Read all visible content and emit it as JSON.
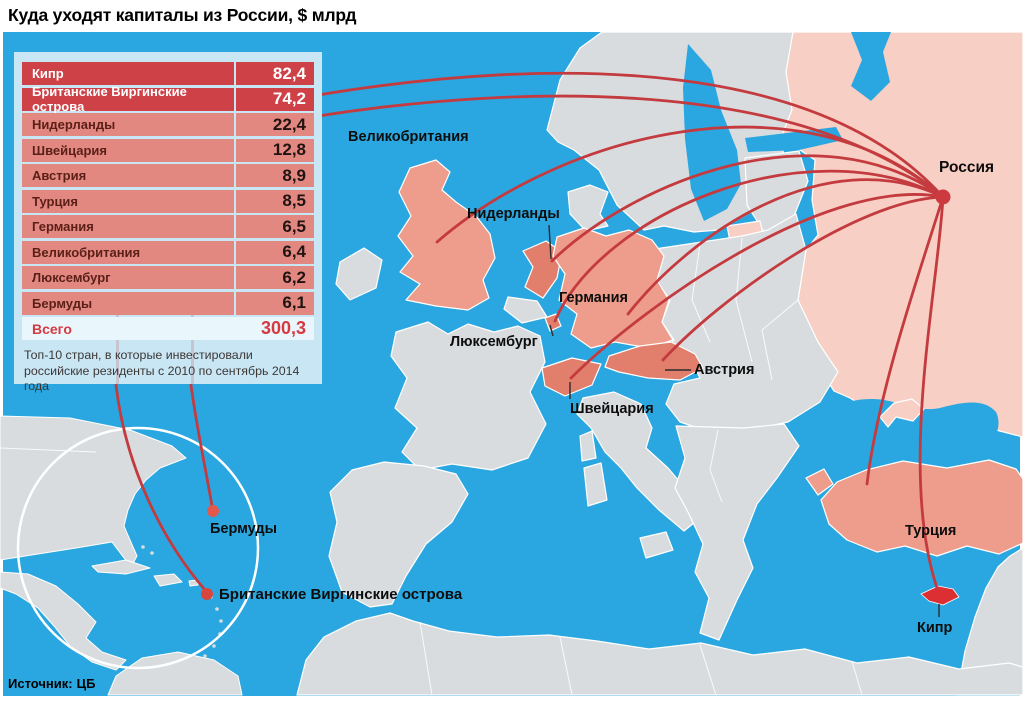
{
  "title": "Куда уходят капиталы из России, $ млрд",
  "table": {
    "rows": [
      {
        "country": "Кипр",
        "value": "82,4"
      },
      {
        "country": "Британские Виргинские острова",
        "value": "74,2"
      },
      {
        "country": "Нидерланды",
        "value": "22,4"
      },
      {
        "country": "Швейцария",
        "value": "12,8"
      },
      {
        "country": "Австрия",
        "value": "8,9"
      },
      {
        "country": "Турция",
        "value": "8,5"
      },
      {
        "country": "Германия",
        "value": "6,5"
      },
      {
        "country": "Великобритания",
        "value": "6,4"
      },
      {
        "country": "Люксембург",
        "value": "6,2"
      },
      {
        "country": "Бермуды",
        "value": "6,1"
      }
    ],
    "total_label": "Всего",
    "total_value": "300,3",
    "note": "Топ-10 стран, в которые инвестировали российские резиденты с 2010 по сентябрь 2014 года"
  },
  "map_labels": {
    "uk": "Великобритания",
    "netherlands": "Нидерланды",
    "germany": "Германия",
    "luxembourg": "Люксембург",
    "switzerland": "Швейцария",
    "austria": "Австрия",
    "russia": "Россия",
    "turkey": "Турция",
    "cyprus": "Кипр",
    "bermuda": "Бермуды",
    "bvi": "Британские Виргинские острова"
  },
  "source": {
    "label": "Источник:",
    "value": "ЦБ"
  },
  "colors": {
    "sea": "#2AA7E0",
    "land": "#D8DCDF",
    "russia_fill": "#F7CFC4",
    "highlight": "#EE9C8B",
    "highlight_dark": "#E17E6C",
    "cyprus_red": "#DC2F33",
    "flow_line": "#C43B3F",
    "origin_dot": "#CC3A40",
    "island_dot": "#E2584C",
    "table_dark_row": "#CE4147",
    "table_light_row": "#E28880",
    "panel_bg": "#C9E6F5",
    "total_row_bg": "#E9F6FC",
    "accent_red": "#D63A40"
  },
  "chart_data": {
    "type": "table",
    "title": "Куда уходят капиталы из России, $ млрд",
    "categories": [
      "Кипр",
      "Британские Виргинские острова",
      "Нидерланды",
      "Швейцария",
      "Австрия",
      "Турция",
      "Германия",
      "Великобритания",
      "Люксембург",
      "Бермуды"
    ],
    "values": [
      82.4,
      74.2,
      22.4,
      12.8,
      8.9,
      8.5,
      6.5,
      6.4,
      6.2,
      6.1
    ],
    "total": 300.3,
    "units": "$ млрд",
    "note": "Топ-10 стран, в которые инвестировали российские резиденты с 2010 по сентябрь 2014 года",
    "source": "ЦБ"
  }
}
